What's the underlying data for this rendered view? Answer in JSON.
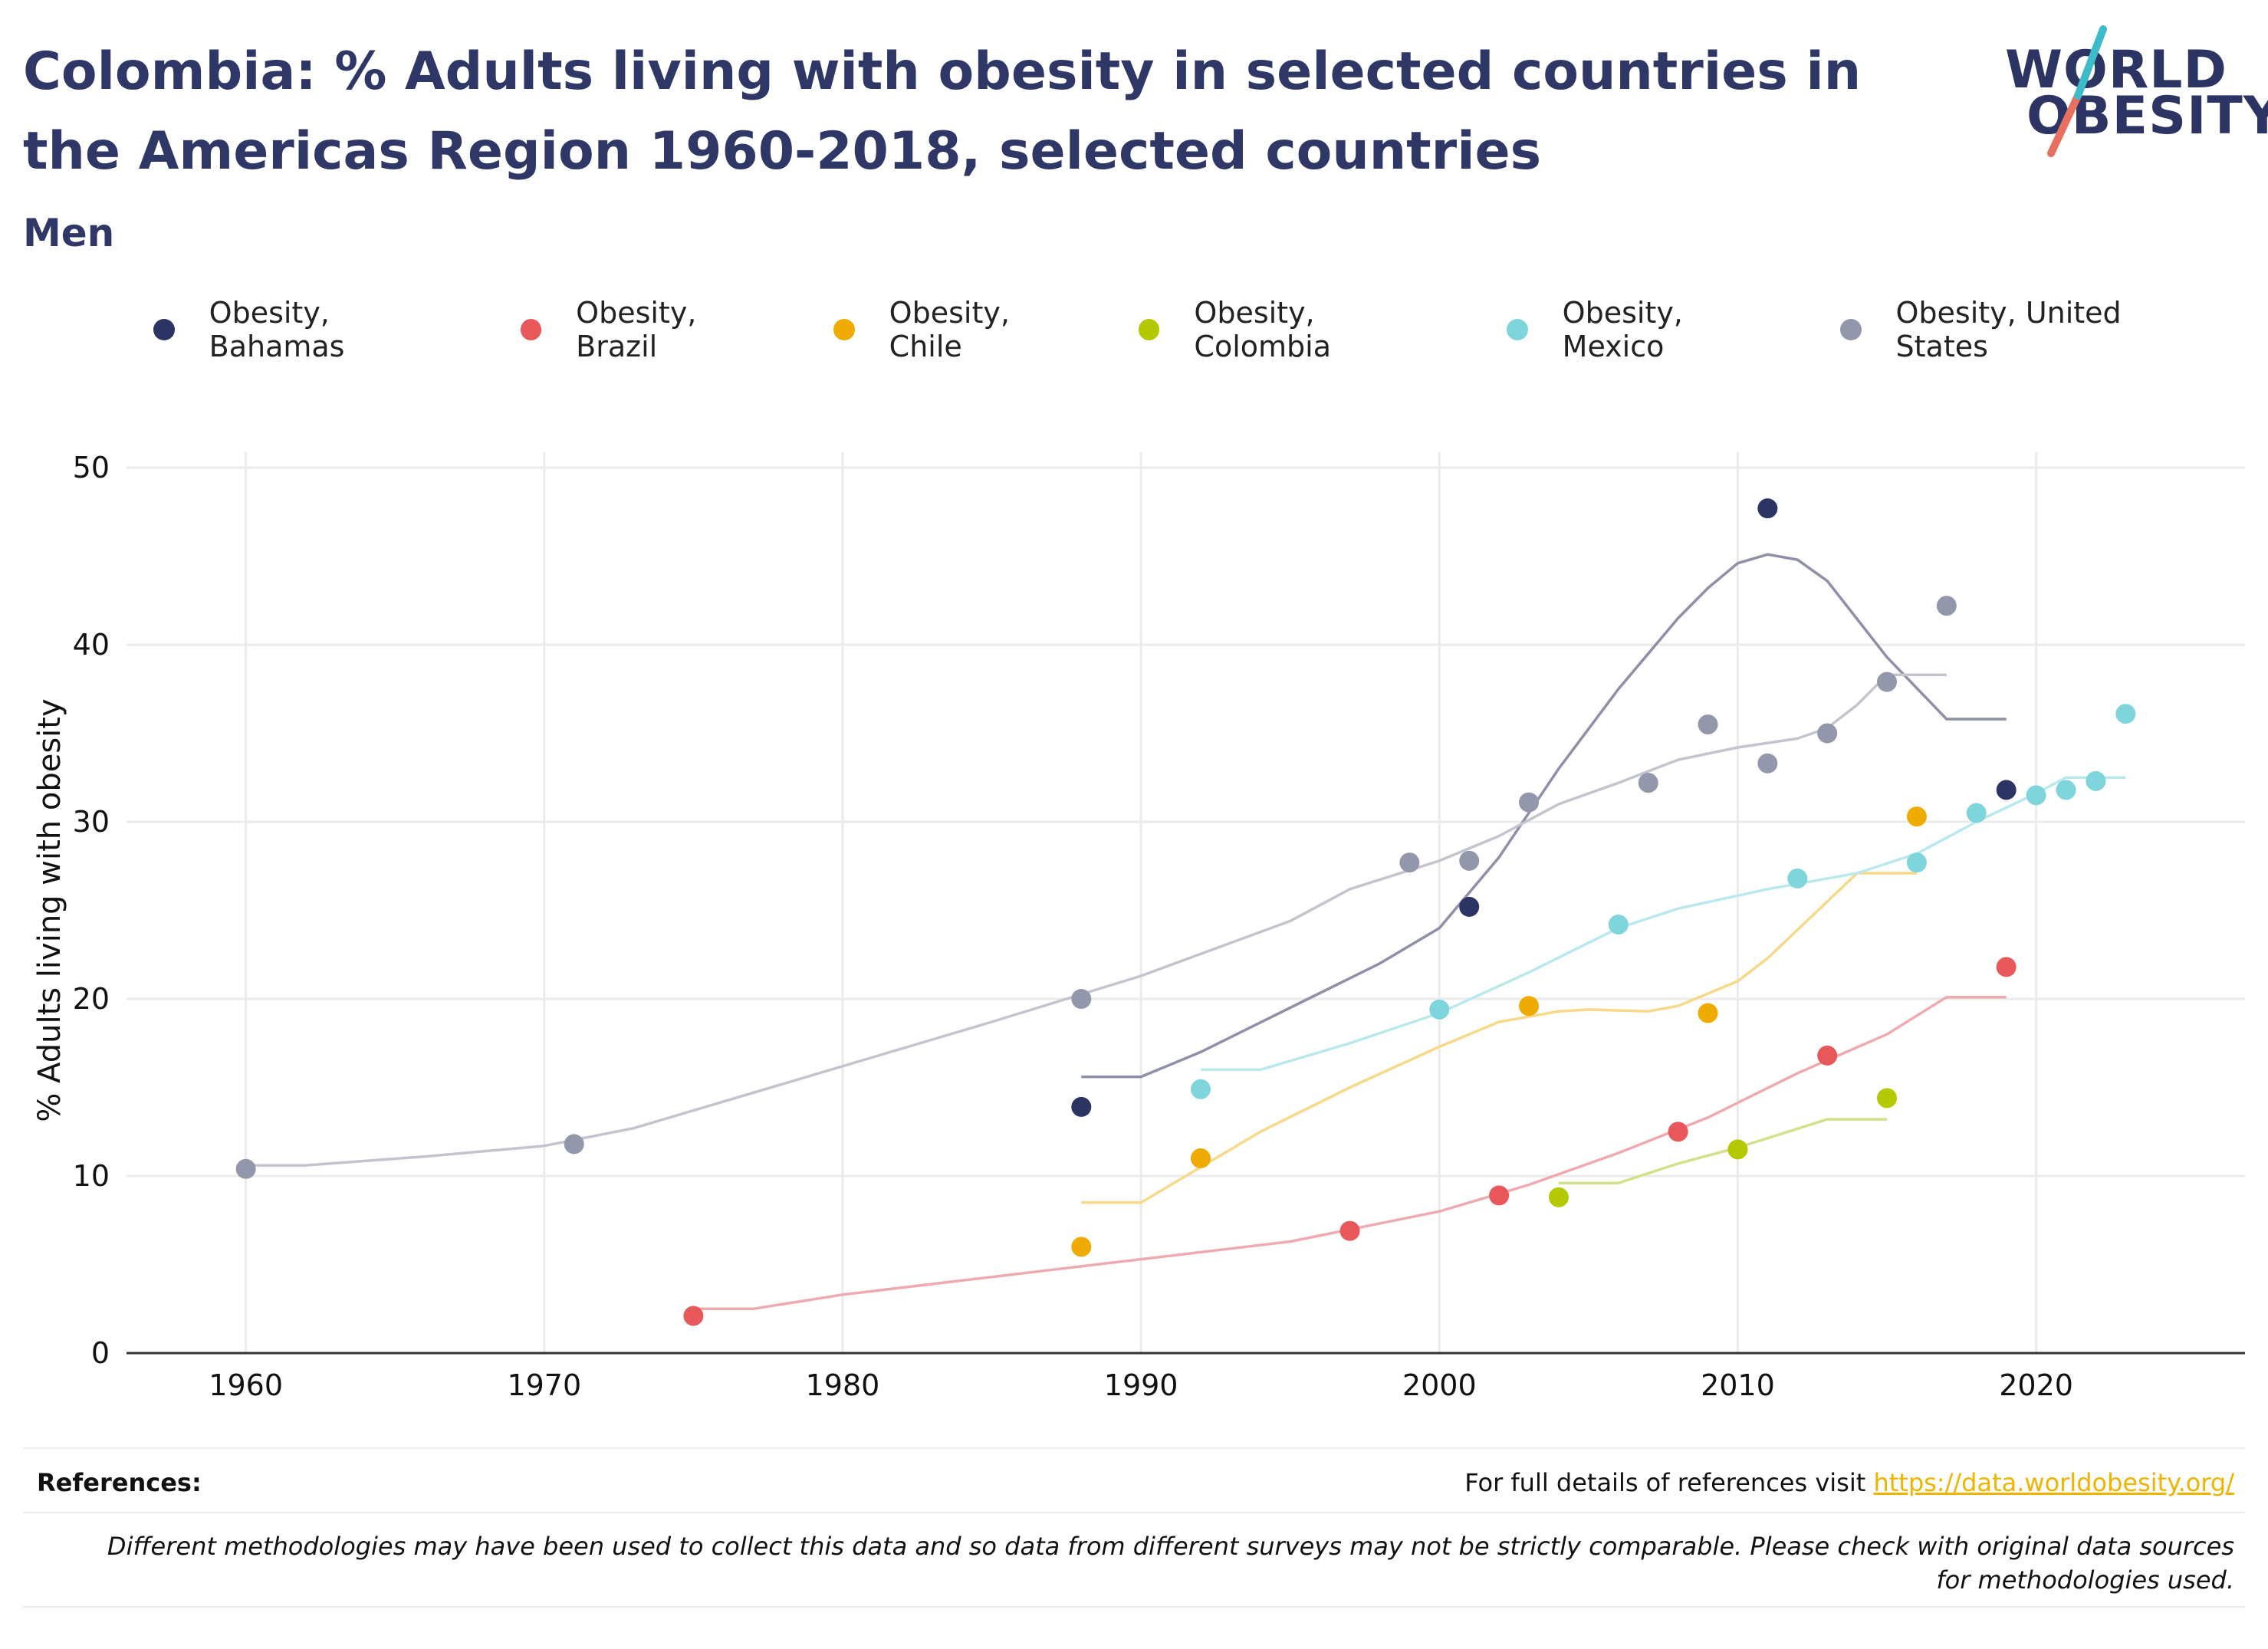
{
  "header": {
    "title": "Colombia: % Adults living with obesity in selected countries in the Americas Region 1960-2018, selected countries",
    "subtitle": "Men"
  },
  "logo": {
    "line1": "WORLD",
    "line2": "OBESITY",
    "colors": {
      "navy": "#2b3463",
      "teal": "#3bbcc8",
      "coral": "#e8705f"
    }
  },
  "footer": {
    "references_label": "References:",
    "references_text": "For full details of references visit ",
    "references_link": "https://data.worldobesity.org/",
    "note": "Different methodologies may have been used to collect this data and so data from different surveys may not be strictly comparable. Please check with original data sources for methodologies used."
  },
  "chart_data": {
    "type": "scatter",
    "title": "Colombia: % Adults living with obesity in selected countries in the Americas Region 1960-2018, selected countries",
    "subtitle": "Men",
    "xlabel": "",
    "ylabel": "% Adults living with obesity",
    "xlim": [
      1956,
      2027
    ],
    "ylim": [
      0,
      50
    ],
    "xticks": [
      1960,
      1970,
      1980,
      1990,
      2000,
      2010,
      2020
    ],
    "yticks": [
      0,
      10,
      20,
      30,
      40,
      50
    ],
    "grid": true,
    "legend_position": "top",
    "series": [
      {
        "name": "Obesity, Bahamas",
        "color": "#2b3463",
        "line_color": "#8e90a8",
        "points": [
          [
            1988,
            13.9
          ],
          [
            2001,
            25.2
          ],
          [
            2011,
            47.7
          ],
          [
            2019,
            31.8
          ]
        ],
        "trend": [
          [
            1988,
            15.6
          ],
          [
            1990,
            15.6
          ],
          [
            1992,
            17.0
          ],
          [
            1995,
            19.5
          ],
          [
            1998,
            22.0
          ],
          [
            2000,
            24.0
          ],
          [
            2002,
            28.0
          ],
          [
            2004,
            33.0
          ],
          [
            2006,
            37.5
          ],
          [
            2008,
            41.5
          ],
          [
            2009,
            43.2
          ],
          [
            2010,
            44.6
          ],
          [
            2011,
            45.1
          ],
          [
            2012,
            44.8
          ],
          [
            2013,
            43.6
          ],
          [
            2015,
            39.3
          ],
          [
            2017,
            35.8
          ],
          [
            2019,
            35.8
          ]
        ]
      },
      {
        "name": "Obesity, Brazil",
        "color": "#e8575a",
        "line_color": "#eeaab0",
        "points": [
          [
            1975,
            2.1
          ],
          [
            1997,
            6.9
          ],
          [
            2002,
            8.9
          ],
          [
            2008,
            12.5
          ],
          [
            2013,
            16.8
          ],
          [
            2019,
            21.8
          ]
        ],
        "trend": [
          [
            1975,
            2.5
          ],
          [
            1977,
            2.5
          ],
          [
            1980,
            3.3
          ],
          [
            1985,
            4.3
          ],
          [
            1990,
            5.3
          ],
          [
            1995,
            6.3
          ],
          [
            2000,
            8.0
          ],
          [
            2003,
            9.5
          ],
          [
            2006,
            11.3
          ],
          [
            2009,
            13.3
          ],
          [
            2012,
            15.8
          ],
          [
            2015,
            18.0
          ],
          [
            2017,
            20.1
          ],
          [
            2019,
            20.1
          ]
        ]
      },
      {
        "name": "Obesity, Chile",
        "color": "#f0ab00",
        "line_color": "#f7d98a",
        "points": [
          [
            1988,
            6.0
          ],
          [
            1992,
            11.0
          ],
          [
            2003,
            19.6
          ],
          [
            2009,
            19.2
          ],
          [
            2016,
            30.3
          ]
        ],
        "trend": [
          [
            1988,
            8.5
          ],
          [
            1990,
            8.5
          ],
          [
            1992,
            10.5
          ],
          [
            1994,
            12.5
          ],
          [
            1997,
            15.0
          ],
          [
            2000,
            17.3
          ],
          [
            2002,
            18.7
          ],
          [
            2004,
            19.3
          ],
          [
            2005,
            19.4
          ],
          [
            2007,
            19.3
          ],
          [
            2008,
            19.6
          ],
          [
            2010,
            21.0
          ],
          [
            2011,
            22.3
          ],
          [
            2013,
            25.5
          ],
          [
            2014,
            27.1
          ],
          [
            2016,
            27.1
          ]
        ]
      },
      {
        "name": "Obesity, Colombia",
        "color": "#b5c900",
        "line_color": "#d4e08a",
        "points": [
          [
            2004,
            8.8
          ],
          [
            2010,
            11.5
          ],
          [
            2015,
            14.4
          ]
        ],
        "trend": [
          [
            2004,
            9.6
          ],
          [
            2006,
            9.6
          ],
          [
            2008,
            10.7
          ],
          [
            2010,
            11.6
          ],
          [
            2013,
            13.2
          ],
          [
            2015,
            13.2
          ]
        ]
      },
      {
        "name": "Obesity, Mexico",
        "color": "#7ed6dc",
        "line_color": "#b9e9ec",
        "points": [
          [
            1992,
            14.9
          ],
          [
            2000,
            19.4
          ],
          [
            2006,
            24.2
          ],
          [
            2012,
            26.8
          ],
          [
            2016,
            27.7
          ],
          [
            2018,
            30.5
          ],
          [
            2020,
            31.5
          ],
          [
            2021,
            31.8
          ],
          [
            2022,
            32.3
          ],
          [
            2023,
            36.1
          ]
        ],
        "trend": [
          [
            1992,
            16.0
          ],
          [
            1994,
            16.0
          ],
          [
            1997,
            17.5
          ],
          [
            2000,
            19.2
          ],
          [
            2003,
            21.5
          ],
          [
            2006,
            24.0
          ],
          [
            2008,
            25.1
          ],
          [
            2011,
            26.2
          ],
          [
            2014,
            27.1
          ],
          [
            2016,
            28.2
          ],
          [
            2018,
            30.0
          ],
          [
            2020,
            31.6
          ],
          [
            2021,
            32.5
          ],
          [
            2023,
            32.5
          ]
        ]
      },
      {
        "name": "Obesity, United States",
        "color": "#9397ac",
        "line_color": "#c3c4cf",
        "points": [
          [
            1960,
            10.4
          ],
          [
            1971,
            11.8
          ],
          [
            1988,
            20.0
          ],
          [
            1999,
            27.7
          ],
          [
            2001,
            27.8
          ],
          [
            2003,
            31.1
          ],
          [
            2007,
            32.2
          ],
          [
            2009,
            35.5
          ],
          [
            2011,
            33.3
          ],
          [
            2013,
            35.0
          ],
          [
            2015,
            37.9
          ],
          [
            2017,
            42.2
          ]
        ],
        "trend": [
          [
            1960,
            10.6
          ],
          [
            1962,
            10.6
          ],
          [
            1966,
            11.1
          ],
          [
            1970,
            11.7
          ],
          [
            1973,
            12.7
          ],
          [
            1978,
            15.2
          ],
          [
            1985,
            18.7
          ],
          [
            1990,
            21.3
          ],
          [
            1995,
            24.4
          ],
          [
            1997,
            26.2
          ],
          [
            2000,
            27.8
          ],
          [
            2002,
            29.2
          ],
          [
            2004,
            31.0
          ],
          [
            2006,
            32.2
          ],
          [
            2008,
            33.5
          ],
          [
            2010,
            34.2
          ],
          [
            2012,
            34.7
          ],
          [
            2013,
            35.3
          ],
          [
            2014,
            36.6
          ],
          [
            2015,
            38.3
          ],
          [
            2017,
            38.3
          ]
        ]
      }
    ]
  }
}
